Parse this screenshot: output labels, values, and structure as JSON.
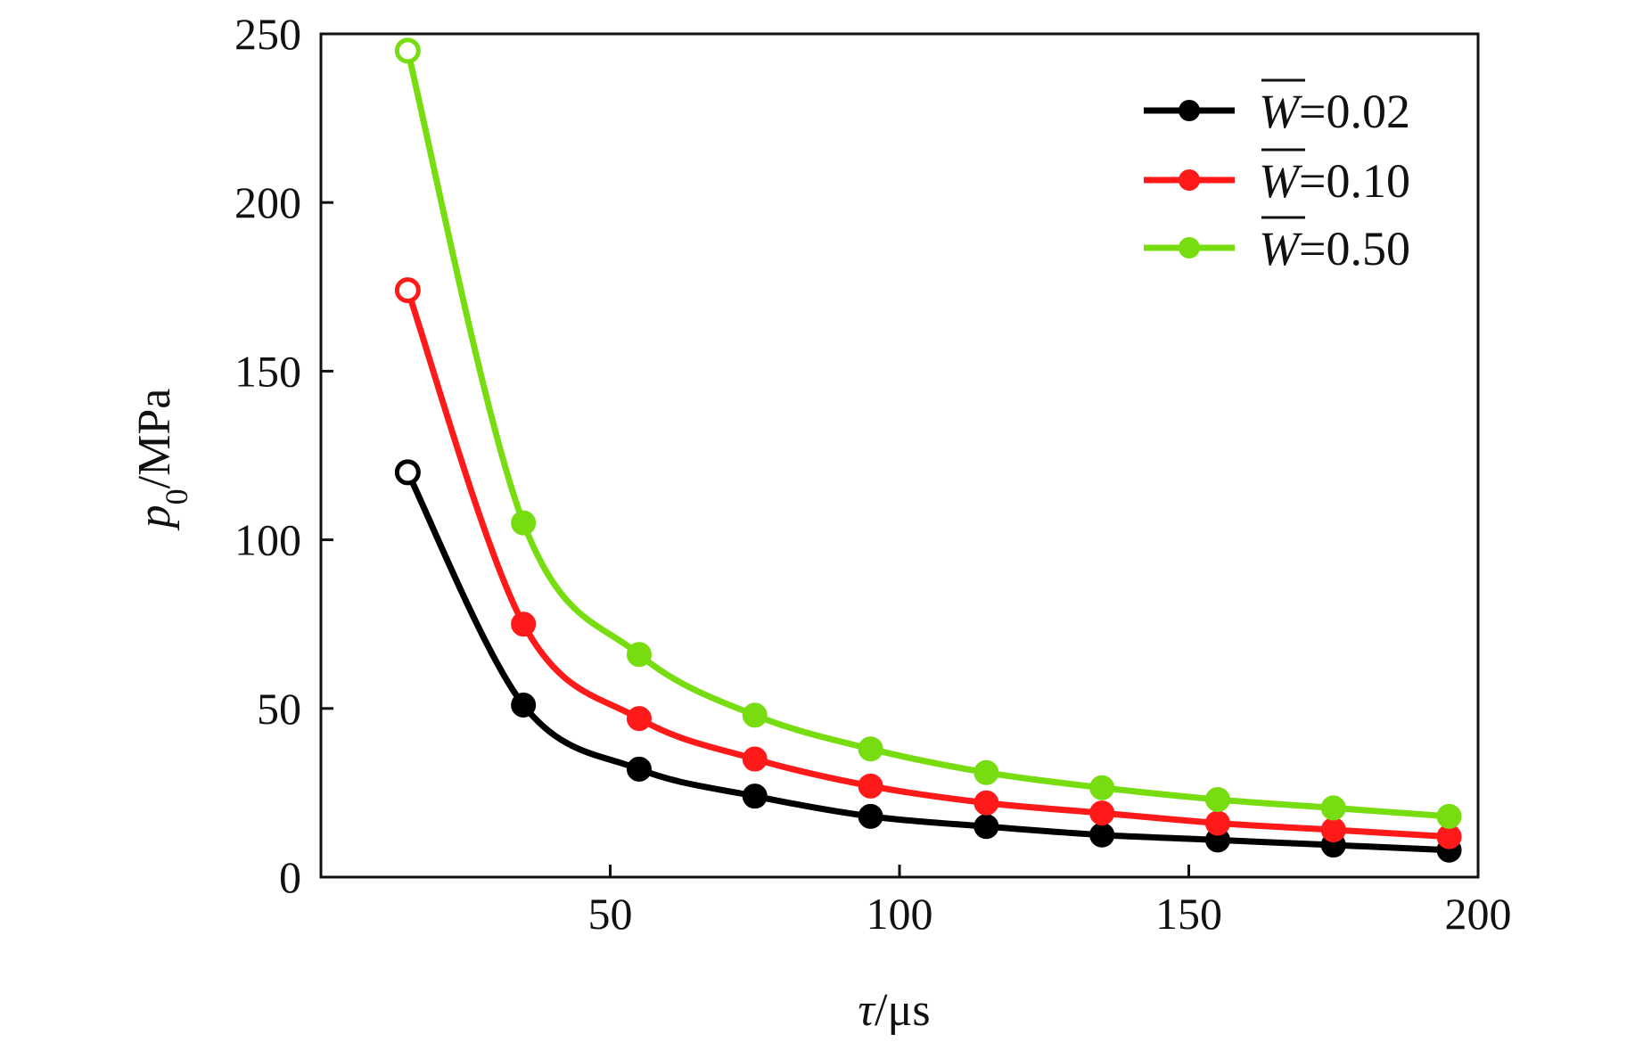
{
  "chart_data": {
    "type": "line",
    "xlabel": {
      "symbol": "τ",
      "unit": "/μs"
    },
    "ylabel": {
      "symbol": "p",
      "subscript": "0",
      "unit": "/MPa"
    },
    "xlim": [
      0,
      200
    ],
    "ylim": [
      0,
      250
    ],
    "xticks": [
      50,
      100,
      150,
      200
    ],
    "yticks": [
      0,
      50,
      100,
      150,
      200,
      250
    ],
    "grid": false,
    "legend_position": "top-right",
    "x": [
      15,
      35,
      55,
      75,
      95,
      115,
      135,
      155,
      175,
      195
    ],
    "series": [
      {
        "name": "W̅=0.02",
        "legend_symbol": "W",
        "legend_value": "=0.02",
        "color": "#000000",
        "values": [
          120,
          51,
          32,
          24,
          18,
          15,
          12.5,
          11,
          9.5,
          8
        ]
      },
      {
        "name": "W̅=0.10",
        "legend_symbol": "W",
        "legend_value": "=0.10",
        "color": "#ff1a1a",
        "values": [
          174,
          75,
          47,
          35,
          27,
          22,
          19,
          16,
          14,
          12
        ]
      },
      {
        "name": "W̅=0.50",
        "legend_symbol": "W",
        "legend_value": "=0.50",
        "color": "#77dd11",
        "values": [
          245,
          105,
          66,
          48,
          38,
          31,
          26.5,
          23,
          20.5,
          18
        ]
      }
    ]
  }
}
